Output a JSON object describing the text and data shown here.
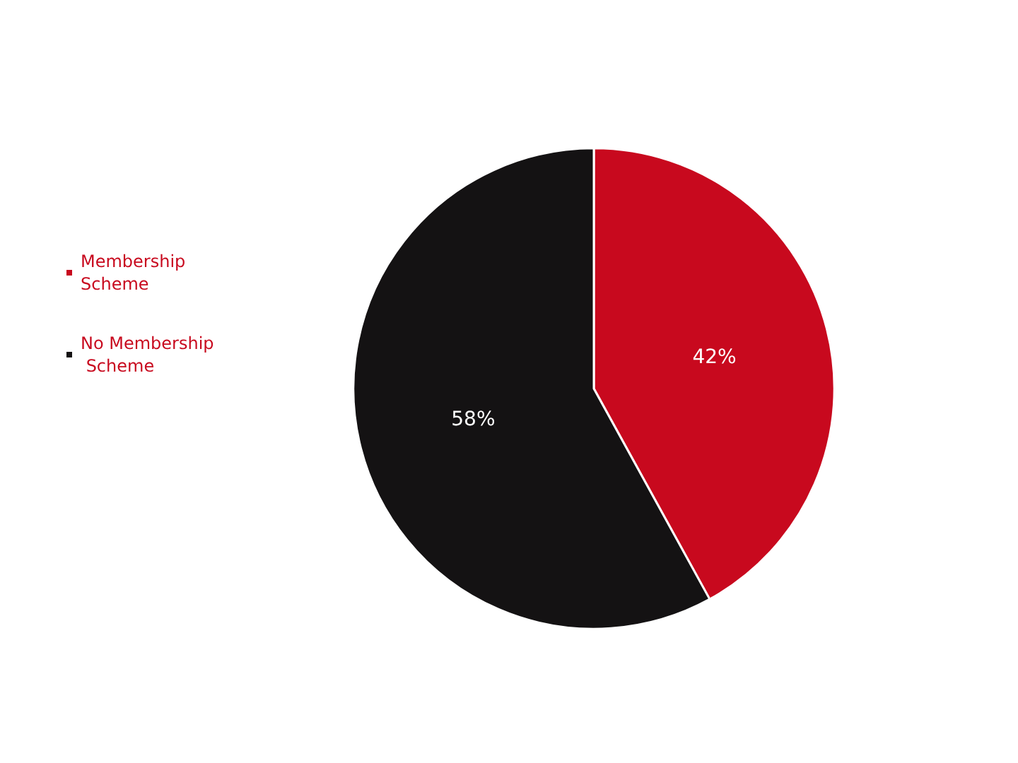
{
  "chart_data": {
    "type": "pie",
    "categories": [
      "Membership Scheme",
      "No Membership Scheme"
    ],
    "values": [
      42,
      58
    ],
    "value_labels": [
      "42%",
      "58%"
    ],
    "colors": [
      "#c8091e",
      "#141213"
    ],
    "legend": "left"
  }
}
